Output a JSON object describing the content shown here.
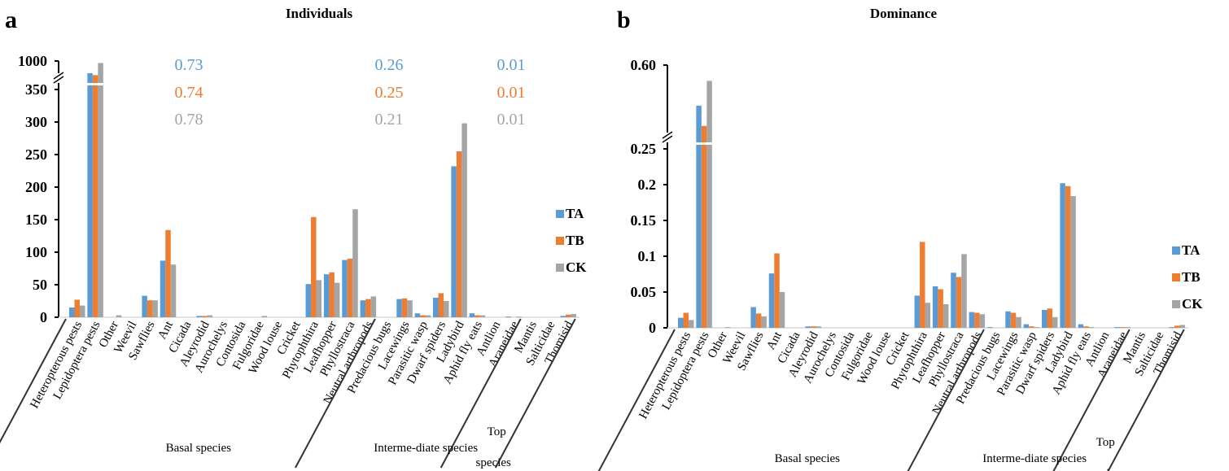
{
  "colors": {
    "TA": "#5B9BD5",
    "TB": "#ED7D31",
    "CK": "#A5A5A5"
  },
  "chart_data": [
    {
      "type": "bar",
      "panel": "a",
      "title": "Individuals",
      "xlabel": "",
      "ylabel": "",
      "ylim": [
        0,
        1000
      ],
      "axis_break": {
        "from": 350,
        "to": 1000
      },
      "yticks": [
        "0",
        "50",
        "100",
        "150",
        "200",
        "250",
        "300",
        "350",
        "1000"
      ],
      "legend": [
        "TA",
        "TB",
        "CK"
      ],
      "legend_position": "right",
      "categories": [
        "Heteropterous pests",
        "Lepidoptera pests",
        "Other",
        "Weevil",
        "Sawflies",
        "Ant",
        "Cicada",
        "Aleyrodid",
        "Aurochelys",
        "Contosida",
        "Fulgoridae",
        "Wood louse",
        "Cricket",
        "Phytophthira",
        "Leafhopper",
        "Phyllostraca",
        "Neutral arthropods",
        "Predacious bugs",
        "Lacewings",
        "Parasitic wasp",
        "Dwarf spiders",
        "Ladybird",
        "Aphid fly eats",
        "Antlion",
        "Araneidae",
        "Mantis",
        "Salticidae",
        "Thomisid"
      ],
      "series": [
        {
          "name": "TA",
          "values": [
            15,
            665,
            0,
            0,
            33,
            87,
            0,
            2,
            0,
            0,
            0,
            0,
            0,
            51,
            66,
            88,
            26,
            0,
            28,
            6,
            30,
            232,
            6,
            0,
            1,
            0,
            0,
            2
          ]
        },
        {
          "name": "TB",
          "values": [
            27,
            610,
            0,
            0,
            26,
            134,
            0,
            2,
            0,
            0,
            0,
            0,
            0,
            154,
            69,
            90,
            28,
            0,
            29,
            3,
            37,
            255,
            3,
            0,
            0,
            0,
            0,
            4
          ]
        },
        {
          "name": "CK",
          "values": [
            18,
            945,
            3,
            0,
            26,
            81,
            0,
            3,
            0,
            0,
            2,
            0,
            0,
            57,
            53,
            166,
            32,
            0,
            26,
            3,
            25,
            298,
            3,
            0,
            1,
            0,
            0,
            5
          ]
        }
      ],
      "groups": [
        {
          "label": "Basal species",
          "from": 0,
          "to": 16
        },
        {
          "label": "Interme-diate species",
          "from": 17,
          "to": 24
        },
        {
          "label_lines": [
            "Top",
            "species"
          ],
          "from": 25,
          "to": 27
        }
      ],
      "annotations": [
        {
          "group": "Basal species",
          "TA": "0.73",
          "TB": "0.74",
          "CK": "0.78"
        },
        {
          "group": "Interme-diate species",
          "TA": "0.26",
          "TB": "0.25",
          "CK": "0.21"
        },
        {
          "group": "Top species",
          "TA": "0.01",
          "TB": "0.01",
          "CK": "0.01"
        }
      ]
    },
    {
      "type": "bar",
      "panel": "b",
      "title": "Dominance",
      "xlabel": "",
      "ylabel": "",
      "ylim": [
        0,
        0.6
      ],
      "axis_break": {
        "from": 0.25,
        "to": 0.6
      },
      "yticks": [
        "0",
        "0.05",
        "0.1",
        "0.15",
        "0.2",
        "0.25",
        "0.60"
      ],
      "legend": [
        "TA",
        "TB",
        "CK"
      ],
      "legend_position": "right",
      "categories": [
        "Heteropterous pests",
        "Lepidoptera pests",
        "Other",
        "Weevil",
        "Sawflies",
        "Ant",
        "Cicada",
        "Aleyrodid",
        "Aurochelys",
        "Contosida",
        "Fulgoridae",
        "Wood louse",
        "Cricket",
        "Phytophthira",
        "Leafhopper",
        "Phyllostraca",
        "Neutral arthropods",
        "Predacious bugs",
        "Lacewings",
        "Parasitic wasp",
        "Dwarf spiders",
        "Ladybird",
        "Aphid fly eats",
        "Antlion",
        "Araneidae",
        "Mantis",
        "Salticidae",
        "Thomisid"
      ],
      "series": [
        {
          "name": "TA",
          "values": [
            0.014,
            0.42,
            0,
            0,
            0.029,
            0.076,
            0,
            0.002,
            0,
            0,
            0,
            0,
            0,
            0.045,
            0.058,
            0.077,
            0.022,
            0.001,
            0.023,
            0.005,
            0.025,
            0.202,
            0.005,
            0,
            0.001,
            0,
            0,
            0.001
          ]
        },
        {
          "name": "TB",
          "values": [
            0.021,
            0.33,
            0,
            0,
            0.02,
            0.104,
            0,
            0.002,
            0,
            0,
            0,
            0,
            0,
            0.12,
            0.054,
            0.071,
            0.021,
            0,
            0.021,
            0.002,
            0.027,
            0.198,
            0.002,
            0,
            0.001,
            0,
            0,
            0.003
          ]
        },
        {
          "name": "CK",
          "values": [
            0.011,
            0.53,
            0.001,
            0,
            0.016,
            0.05,
            0,
            0.002,
            0,
            0,
            0,
            0,
            0,
            0.035,
            0.033,
            0.103,
            0.019,
            0,
            0.015,
            0.001,
            0.015,
            0.184,
            0.001,
            0,
            0.001,
            0,
            0,
            0.004
          ]
        }
      ],
      "groups": [
        {
          "label": "Basal species",
          "from": 0,
          "to": 16
        },
        {
          "label": "Interme-diate species",
          "from": 17,
          "to": 24
        },
        {
          "label_lines": [
            "Top",
            "species"
          ],
          "from": 25,
          "to": 27
        }
      ]
    }
  ]
}
